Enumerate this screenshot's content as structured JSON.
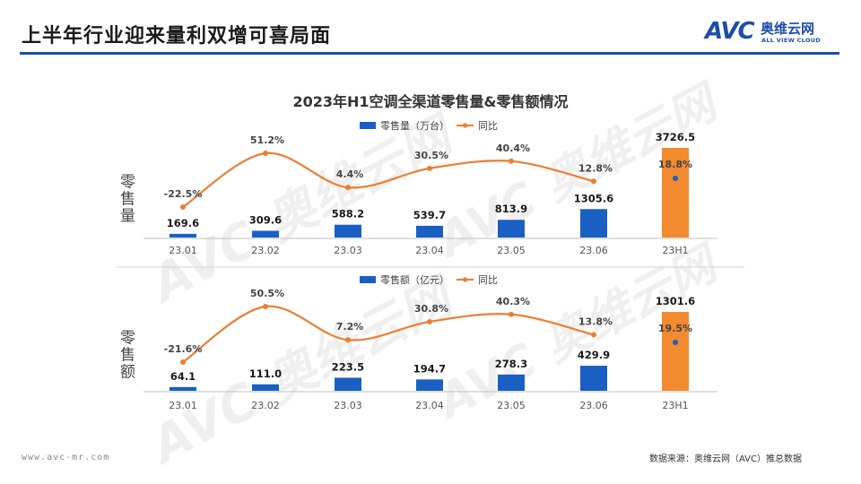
{
  "page": {
    "title": "上半年行业迎来量利双增可喜局面",
    "footer_url": "www.avc-mr.com",
    "source": "数据来源：奥维云网（AVC）推总数据"
  },
  "logo": {
    "mark": "AVC",
    "name_cn": "奥维云网",
    "name_en": "ALL VIEW CLOUD"
  },
  "watermark": {
    "mark": "AVC",
    "name_cn": "奥维云网",
    "name_en": "ALL VIEW CLOUD"
  },
  "colors": {
    "bar_blue": "#1a5fc4",
    "bar_orange": "#f28a30",
    "line_orange": "#ed7d31",
    "point_blue": "#1a5fc4",
    "rule_blue": "#1a4fa3"
  },
  "chart_data": [
    {
      "type": "bar",
      "title": "2023年H1空调全渠道零售量&零售额情况",
      "panel_label": "零售量",
      "categories": [
        "23.01",
        "23.02",
        "23.03",
        "23.04",
        "23.05",
        "23.06",
        "23H1"
      ],
      "series": [
        {
          "name": "零售量（万台）",
          "type": "bar",
          "values": [
            169.6,
            309.6,
            588.2,
            539.7,
            813.9,
            1305.6,
            3726.5
          ]
        },
        {
          "name": "同比",
          "type": "line",
          "unit": "%",
          "values": [
            -22.5,
            51.2,
            4.4,
            30.5,
            40.4,
            12.8,
            18.8
          ]
        }
      ],
      "value_labels": [
        "169.6",
        "309.6",
        "588.2",
        "539.7",
        "813.9",
        "1305.6",
        "3726.5"
      ],
      "pct_labels": [
        "-22.5%",
        "51.2%",
        "4.4%",
        "30.5%",
        "40.4%",
        "12.8%",
        "18.8%"
      ],
      "legend_position": "top",
      "grid": false
    },
    {
      "type": "bar",
      "panel_label": "零售额",
      "categories": [
        "23.01",
        "23.02",
        "23.03",
        "23.04",
        "23.05",
        "23.06",
        "23H1"
      ],
      "series": [
        {
          "name": "零售额（亿元）",
          "type": "bar",
          "values": [
            64.1,
            111.0,
            223.5,
            194.7,
            278.3,
            429.9,
            1301.6
          ]
        },
        {
          "name": "同比",
          "type": "line",
          "unit": "%",
          "values": [
            -21.6,
            50.5,
            7.2,
            30.8,
            40.3,
            13.8,
            19.5
          ]
        }
      ],
      "value_labels": [
        "64.1",
        "111.0",
        "223.5",
        "194.7",
        "278.3",
        "429.9",
        "1301.6"
      ],
      "pct_labels": [
        "-21.6%",
        "50.5%",
        "7.2%",
        "30.8%",
        "40.3%",
        "13.8%",
        "19.5%"
      ],
      "legend_position": "top",
      "grid": false
    }
  ]
}
